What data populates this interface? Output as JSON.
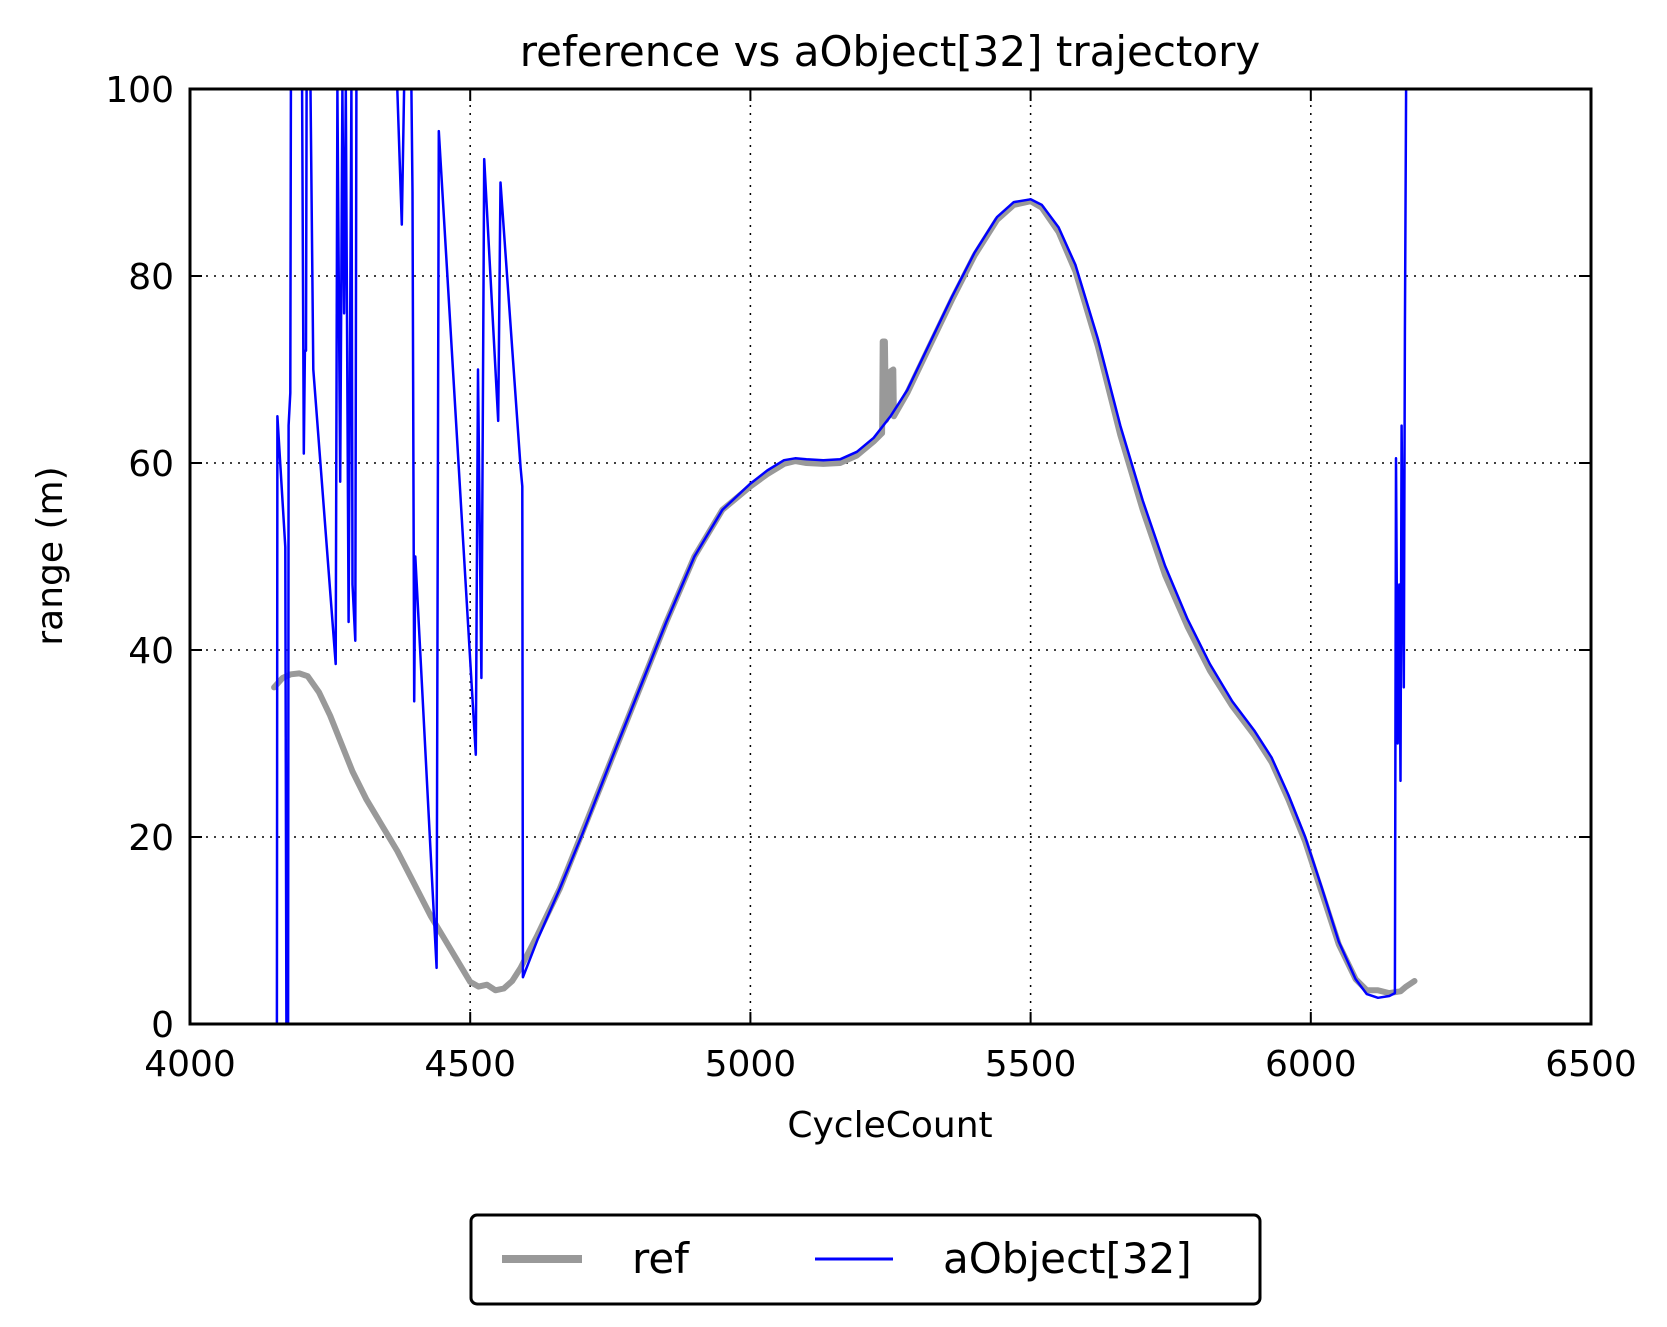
{
  "chart_data": {
    "type": "line",
    "title": "reference vs aObject[32] trajectory",
    "xlabel": "CycleCount",
    "ylabel": "range (m)",
    "xlim": [
      4000,
      6500
    ],
    "ylim": [
      0,
      100
    ],
    "xticks": [
      4000,
      4500,
      5000,
      5500,
      6000,
      6500
    ],
    "yticks": [
      0,
      20,
      40,
      60,
      80,
      100
    ],
    "grid": true,
    "legend_position": "bottom-center (below plot)",
    "series": [
      {
        "name": "ref",
        "color": "#999999",
        "points": [
          [
            4150,
            36
          ],
          [
            4165,
            37
          ],
          [
            4180,
            37.4
          ],
          [
            4195,
            37.5
          ],
          [
            4210,
            37.2
          ],
          [
            4230,
            35.5
          ],
          [
            4250,
            33
          ],
          [
            4270,
            30
          ],
          [
            4290,
            27
          ],
          [
            4315,
            24
          ],
          [
            4340,
            21.5
          ],
          [
            4370,
            18.5
          ],
          [
            4400,
            15
          ],
          [
            4430,
            11.5
          ],
          [
            4460,
            8.5
          ],
          [
            4485,
            6
          ],
          [
            4500,
            4.5
          ],
          [
            4515,
            4
          ],
          [
            4530,
            4.2
          ],
          [
            4545,
            3.6
          ],
          [
            4560,
            3.8
          ],
          [
            4575,
            4.6
          ],
          [
            4590,
            6
          ],
          [
            4620,
            9.5
          ],
          [
            4660,
            14.5
          ],
          [
            4700,
            20.5
          ],
          [
            4750,
            28
          ],
          [
            4800,
            35.5
          ],
          [
            4850,
            43
          ],
          [
            4900,
            50
          ],
          [
            4950,
            55
          ],
          [
            5000,
            57.5
          ],
          [
            5030,
            58.8
          ],
          [
            5060,
            59.9
          ],
          [
            5080,
            60.2
          ],
          [
            5100,
            60
          ],
          [
            5130,
            59.9
          ],
          [
            5160,
            60
          ],
          [
            5190,
            60.8
          ],
          [
            5220,
            62.3
          ],
          [
            5235,
            63.2
          ],
          [
            5236,
            73
          ],
          [
            5240,
            73
          ],
          [
            5242,
            64.6
          ],
          [
            5248,
            65.5
          ],
          [
            5250,
            69.8
          ],
          [
            5255,
            70
          ],
          [
            5256,
            65
          ],
          [
            5280,
            67.5
          ],
          [
            5320,
            72.5
          ],
          [
            5360,
            77.5
          ],
          [
            5400,
            82.2
          ],
          [
            5440,
            86
          ],
          [
            5470,
            87.6
          ],
          [
            5500,
            88
          ],
          [
            5520,
            87.3
          ],
          [
            5550,
            84.7
          ],
          [
            5580,
            80.5
          ],
          [
            5620,
            72.5
          ],
          [
            5660,
            63
          ],
          [
            5700,
            55
          ],
          [
            5740,
            48
          ],
          [
            5780,
            42.5
          ],
          [
            5820,
            37.8
          ],
          [
            5860,
            34
          ],
          [
            5900,
            30.8
          ],
          [
            5930,
            28
          ],
          [
            5960,
            24
          ],
          [
            5990,
            19.5
          ],
          [
            6020,
            14
          ],
          [
            6050,
            8.5
          ],
          [
            6080,
            4.8
          ],
          [
            6100,
            3.6
          ],
          [
            6120,
            3.6
          ],
          [
            6140,
            3.3
          ],
          [
            6160,
            3.5
          ],
          [
            6170,
            4
          ],
          [
            6185,
            4.6
          ]
        ]
      },
      {
        "name": "aObject[32]",
        "color": "#0000ff",
        "points": [
          [
            4155,
            0
          ],
          [
            4156,
            65
          ],
          [
            4170,
            51
          ],
          [
            4172,
            0
          ],
          [
            4175,
            0
          ],
          [
            4176,
            64
          ],
          [
            4179,
            67.5
          ],
          [
            4180,
            100
          ],
          [
            4200,
            100
          ],
          [
            4203,
            61
          ],
          [
            4205,
            72
          ],
          [
            4207,
            72
          ],
          [
            4208,
            100
          ],
          [
            4215,
            100
          ],
          [
            4220,
            70
          ],
          [
            4260,
            38.5
          ],
          [
            4263,
            100
          ],
          [
            4268,
            58
          ],
          [
            4272,
            100
          ],
          [
            4275,
            76
          ],
          [
            4278,
            100
          ],
          [
            4283,
            43
          ],
          [
            4288,
            100
          ],
          [
            4290,
            47
          ],
          [
            4295,
            41
          ],
          [
            4297,
            100
          ],
          [
            4370,
            100
          ],
          [
            4378,
            85.5
          ],
          [
            4382,
            100
          ],
          [
            4395,
            100
          ],
          [
            4397,
            89
          ],
          [
            4400,
            34.5
          ],
          [
            4402,
            50
          ],
          [
            4440,
            6
          ],
          [
            4444,
            95.5
          ],
          [
            4510,
            28.8
          ],
          [
            4514,
            70
          ],
          [
            4520,
            37
          ],
          [
            4525,
            92.5
          ],
          [
            4550,
            64.5
          ],
          [
            4554,
            90
          ],
          [
            4590,
            59.5
          ],
          [
            4593,
            57.5
          ],
          [
            4594,
            5
          ],
          [
            4620,
            9
          ],
          [
            4660,
            14.5
          ],
          [
            4700,
            20.3
          ],
          [
            4750,
            28
          ],
          [
            4800,
            35.5
          ],
          [
            4850,
            43
          ],
          [
            4900,
            50
          ],
          [
            4950,
            55
          ],
          [
            5000,
            57.8
          ],
          [
            5030,
            59.2
          ],
          [
            5060,
            60.3
          ],
          [
            5080,
            60.5
          ],
          [
            5100,
            60.4
          ],
          [
            5130,
            60.3
          ],
          [
            5160,
            60.4
          ],
          [
            5190,
            61.2
          ],
          [
            5220,
            62.7
          ],
          [
            5250,
            65
          ],
          [
            5280,
            67.8
          ],
          [
            5320,
            72.8
          ],
          [
            5360,
            77.8
          ],
          [
            5400,
            82.5
          ],
          [
            5440,
            86.3
          ],
          [
            5470,
            87.9
          ],
          [
            5500,
            88.2
          ],
          [
            5520,
            87.6
          ],
          [
            5550,
            85.2
          ],
          [
            5580,
            81.2
          ],
          [
            5620,
            73.3
          ],
          [
            5660,
            64
          ],
          [
            5700,
            56
          ],
          [
            5740,
            49
          ],
          [
            5780,
            43.3
          ],
          [
            5820,
            38.5
          ],
          [
            5860,
            34.5
          ],
          [
            5900,
            31.3
          ],
          [
            5930,
            28.5
          ],
          [
            5960,
            24.5
          ],
          [
            5990,
            20
          ],
          [
            6020,
            14.5
          ],
          [
            6050,
            8.8
          ],
          [
            6080,
            4.8
          ],
          [
            6100,
            3.2
          ],
          [
            6120,
            2.8
          ],
          [
            6140,
            3
          ],
          [
            6150,
            3.3
          ],
          [
            6152,
            60.5
          ],
          [
            6155,
            30
          ],
          [
            6158,
            47
          ],
          [
            6160,
            26
          ],
          [
            6162,
            64
          ],
          [
            6166,
            36
          ],
          [
            6168,
            74
          ],
          [
            6170,
            100
          ]
        ]
      }
    ]
  }
}
